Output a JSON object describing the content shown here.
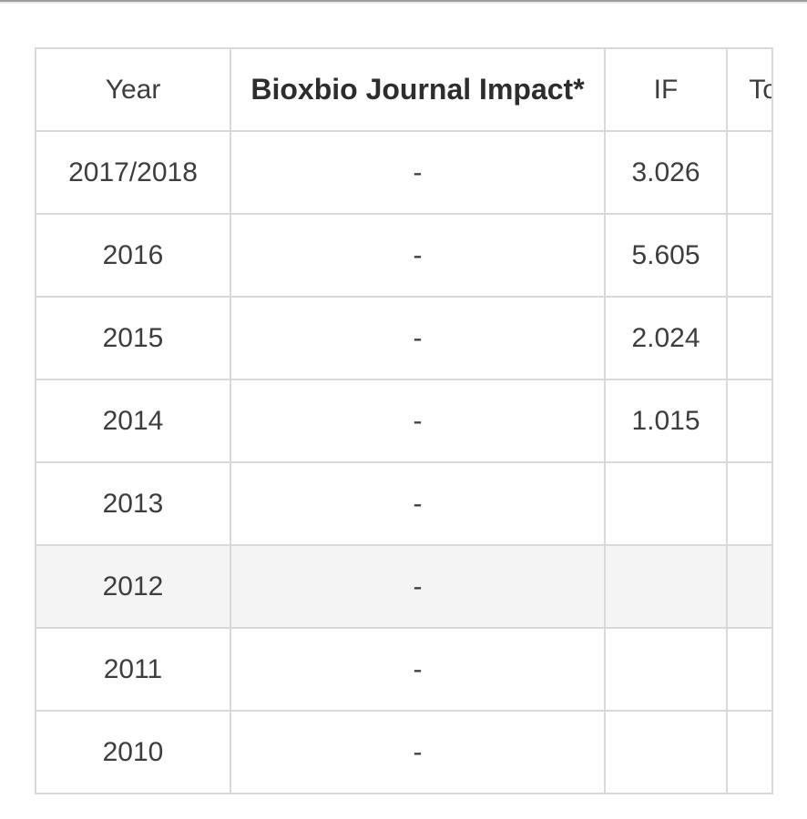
{
  "page": {
    "top_strip_color_dark": "#9c9c9c",
    "top_strip_color_light": "#ececec",
    "background": "#ffffff"
  },
  "table": {
    "columns": [
      {
        "label": "Year"
      },
      {
        "label": "Bioxbio Journal Impact*"
      },
      {
        "label": "IF"
      },
      {
        "label": "Total Articles"
      }
    ],
    "rows": [
      {
        "year": "2017/2018",
        "bioxbio_impact": "-",
        "if_value": "3.026",
        "highlighted": false
      },
      {
        "year": "2016",
        "bioxbio_impact": "-",
        "if_value": "5.605",
        "highlighted": false
      },
      {
        "year": "2015",
        "bioxbio_impact": "-",
        "if_value": "2.024",
        "highlighted": false
      },
      {
        "year": "2014",
        "bioxbio_impact": "-",
        "if_value": "1.015",
        "highlighted": false
      },
      {
        "year": "2013",
        "bioxbio_impact": "-",
        "if_value": "",
        "highlighted": false
      },
      {
        "year": "2012",
        "bioxbio_impact": "-",
        "if_value": "",
        "highlighted": true
      },
      {
        "year": "2011",
        "bioxbio_impact": "-",
        "if_value": "",
        "highlighted": false
      },
      {
        "year": "2010",
        "bioxbio_impact": "-",
        "if_value": "",
        "highlighted": false
      }
    ],
    "colors": {
      "border": "#d9d9d9",
      "text": "#3d3d3d",
      "header_bold_text": "#2d2d2d",
      "highlight_row_bg": "#f4f4f4"
    }
  }
}
